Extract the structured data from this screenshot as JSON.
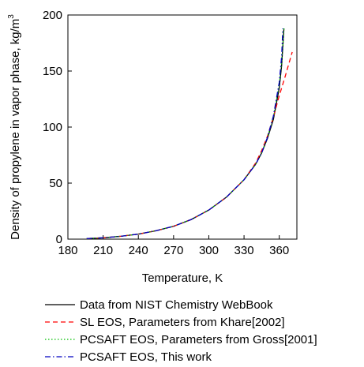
{
  "chart_data": {
    "type": "line",
    "title": "",
    "xlabel": "Temperature, K",
    "ylabel": "Density of propylene in vapor phase, kg/m",
    "ylabel_superscript": "3",
    "xlim": [
      180,
      375
    ],
    "ylim": [
      0,
      200
    ],
    "x_ticks": [
      180,
      210,
      240,
      270,
      300,
      330,
      360
    ],
    "y_ticks": [
      0,
      50,
      100,
      150,
      200
    ],
    "grid": false,
    "legend_position": "below",
    "series": [
      {
        "name": "Data from NIST Chemistry WebBook",
        "color": "#000000",
        "dash": "solid",
        "x": [
          196,
          210,
          225,
          240,
          255,
          270,
          285,
          300,
          315,
          330,
          340,
          345,
          350,
          355,
          360,
          362,
          364
        ],
        "y": [
          0.5,
          1.2,
          2.5,
          4.5,
          7.5,
          11.5,
          17.5,
          26,
          37.5,
          53,
          67,
          77,
          90,
          107,
          135,
          155,
          188
        ]
      },
      {
        "name": "SL EOS, Parameters from Khare[2002]",
        "color": "#ff0000",
        "dash": "dashed",
        "x": [
          196,
          210,
          225,
          240,
          255,
          270,
          285,
          300,
          315,
          330,
          340,
          345,
          350,
          355,
          360,
          365,
          371
        ],
        "y": [
          0.5,
          1.2,
          2.5,
          4.5,
          7.5,
          11.5,
          17.5,
          26,
          37.5,
          53,
          68,
          79,
          92,
          109,
          128,
          145,
          167
        ]
      },
      {
        "name": "PCSAFT EOS, Parameters from Gross[2001]",
        "color": "#00c000",
        "dash": "dotted",
        "x": [
          196,
          210,
          225,
          240,
          255,
          270,
          285,
          300,
          315,
          330,
          340,
          345,
          350,
          355,
          360,
          362,
          364
        ],
        "y": [
          0.5,
          1.2,
          2.5,
          4.5,
          7.5,
          11.5,
          17.5,
          26,
          37.5,
          53,
          67,
          77,
          91,
          109,
          138,
          158,
          188
        ]
      },
      {
        "name": "PCSAFT EOS, This work",
        "color": "#0000c0",
        "dash": "dashdot",
        "x": [
          196,
          210,
          225,
          240,
          255,
          270,
          285,
          300,
          315,
          330,
          340,
          345,
          350,
          355,
          360,
          362,
          363
        ],
        "y": [
          0.5,
          1.2,
          2.5,
          4.5,
          7.5,
          11.5,
          17.5,
          26,
          37.5,
          53,
          67,
          77,
          91,
          110,
          140,
          163,
          188
        ]
      }
    ]
  }
}
